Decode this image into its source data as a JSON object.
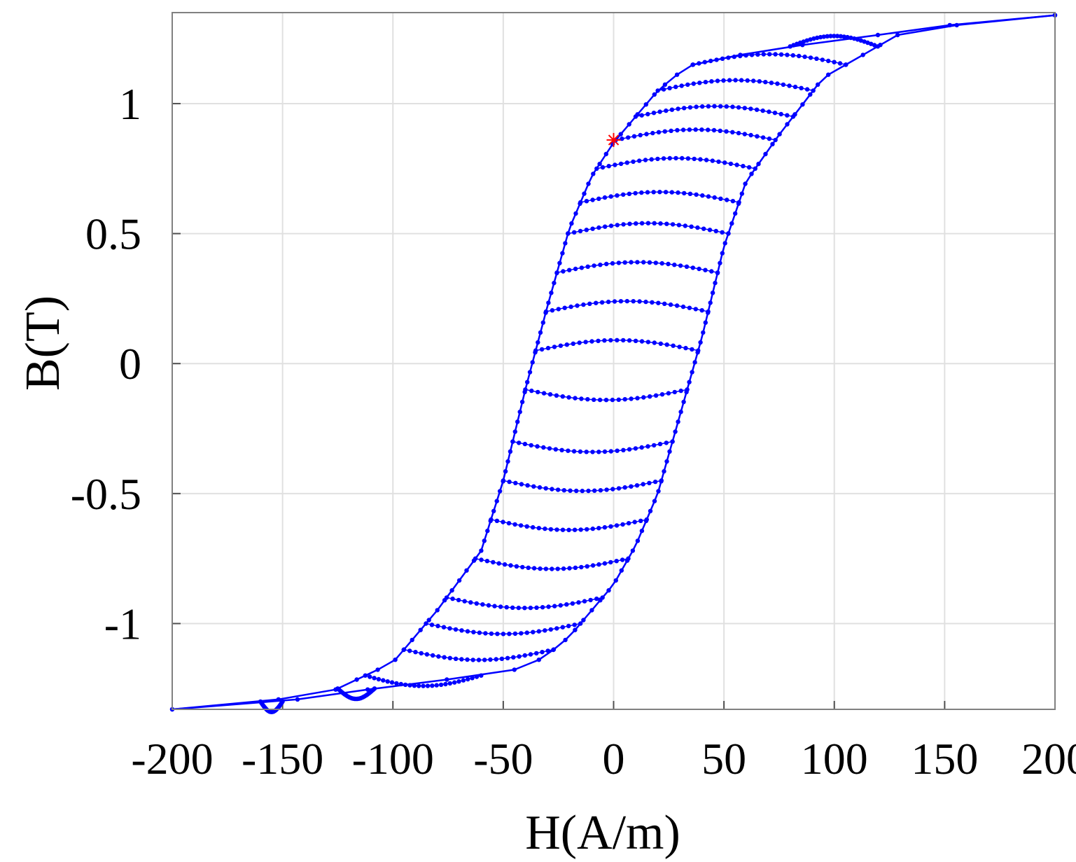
{
  "chart_data": {
    "type": "line",
    "title": "",
    "xlabel": "H(A/m)",
    "ylabel": "B(T)",
    "xlim": [
      -200,
      200
    ],
    "ylim": [
      -1.33,
      1.35
    ],
    "xticks": [
      -200,
      -150,
      -100,
      -50,
      0,
      50,
      100,
      150,
      200
    ],
    "xtick_labels": [
      "-200",
      "-150",
      "-100",
      "-50",
      "0",
      "50",
      "100",
      "150",
      "200"
    ],
    "yticks": [
      -1,
      -0.5,
      0,
      0.5,
      1
    ],
    "ytick_labels": [
      "-1",
      "-0.5",
      "0",
      "0.5",
      "1"
    ],
    "grid": true,
    "legend": "none",
    "series_color": "#0000ff",
    "marker_color": "#ff0000",
    "series": [
      {
        "role": "major-loop-descending-branch",
        "points": [
          [
            200,
            1.34
          ],
          [
            150,
            1.3
          ],
          [
            100,
            1.24
          ],
          [
            80,
            1.22
          ],
          [
            60,
            1.19
          ],
          [
            40,
            1.17
          ],
          [
            30,
            1.12
          ],
          [
            20,
            1.05
          ],
          [
            10,
            0.95
          ],
          [
            0,
            0.85
          ],
          [
            -10,
            0.72
          ],
          [
            -20,
            0.52
          ],
          [
            -30,
            0.22
          ],
          [
            -40,
            -0.1
          ],
          [
            -50,
            -0.45
          ],
          [
            -60,
            -0.72
          ],
          [
            -80,
            -0.95
          ],
          [
            -100,
            -1.15
          ],
          [
            -130,
            -1.27
          ],
          [
            -170,
            -1.31
          ],
          [
            -200,
            -1.33
          ]
        ]
      },
      {
        "role": "major-loop-ascending-branch",
        "points": [
          [
            -200,
            -1.33
          ],
          [
            -150,
            -1.3
          ],
          [
            -100,
            -1.24
          ],
          [
            -80,
            -1.22
          ],
          [
            -60,
            -1.2
          ],
          [
            -40,
            -1.17
          ],
          [
            -30,
            -1.12
          ],
          [
            -20,
            -1.05
          ],
          [
            -10,
            -0.95
          ],
          [
            0,
            -0.85
          ],
          [
            10,
            -0.7
          ],
          [
            20,
            -0.5
          ],
          [
            30,
            -0.2
          ],
          [
            40,
            0.1
          ],
          [
            50,
            0.45
          ],
          [
            60,
            0.7
          ],
          [
            75,
            0.88
          ],
          [
            95,
            1.1
          ],
          [
            130,
            1.27
          ],
          [
            170,
            1.32
          ],
          [
            200,
            1.34
          ]
        ]
      },
      {
        "role": "minor-loops",
        "count": 22,
        "turning_points_B": [
          -1.3,
          -1.25,
          -1.2,
          -1.1,
          -1.0,
          -0.9,
          -0.75,
          -0.6,
          -0.45,
          -0.3,
          -0.1,
          0.05,
          0.2,
          0.35,
          0.5,
          0.62,
          0.75,
          0.86,
          0.95,
          1.05,
          1.15,
          1.22
        ]
      },
      {
        "role": "start-marker",
        "marker": "star",
        "points": [
          [
            0,
            0.86
          ]
        ]
      }
    ]
  }
}
